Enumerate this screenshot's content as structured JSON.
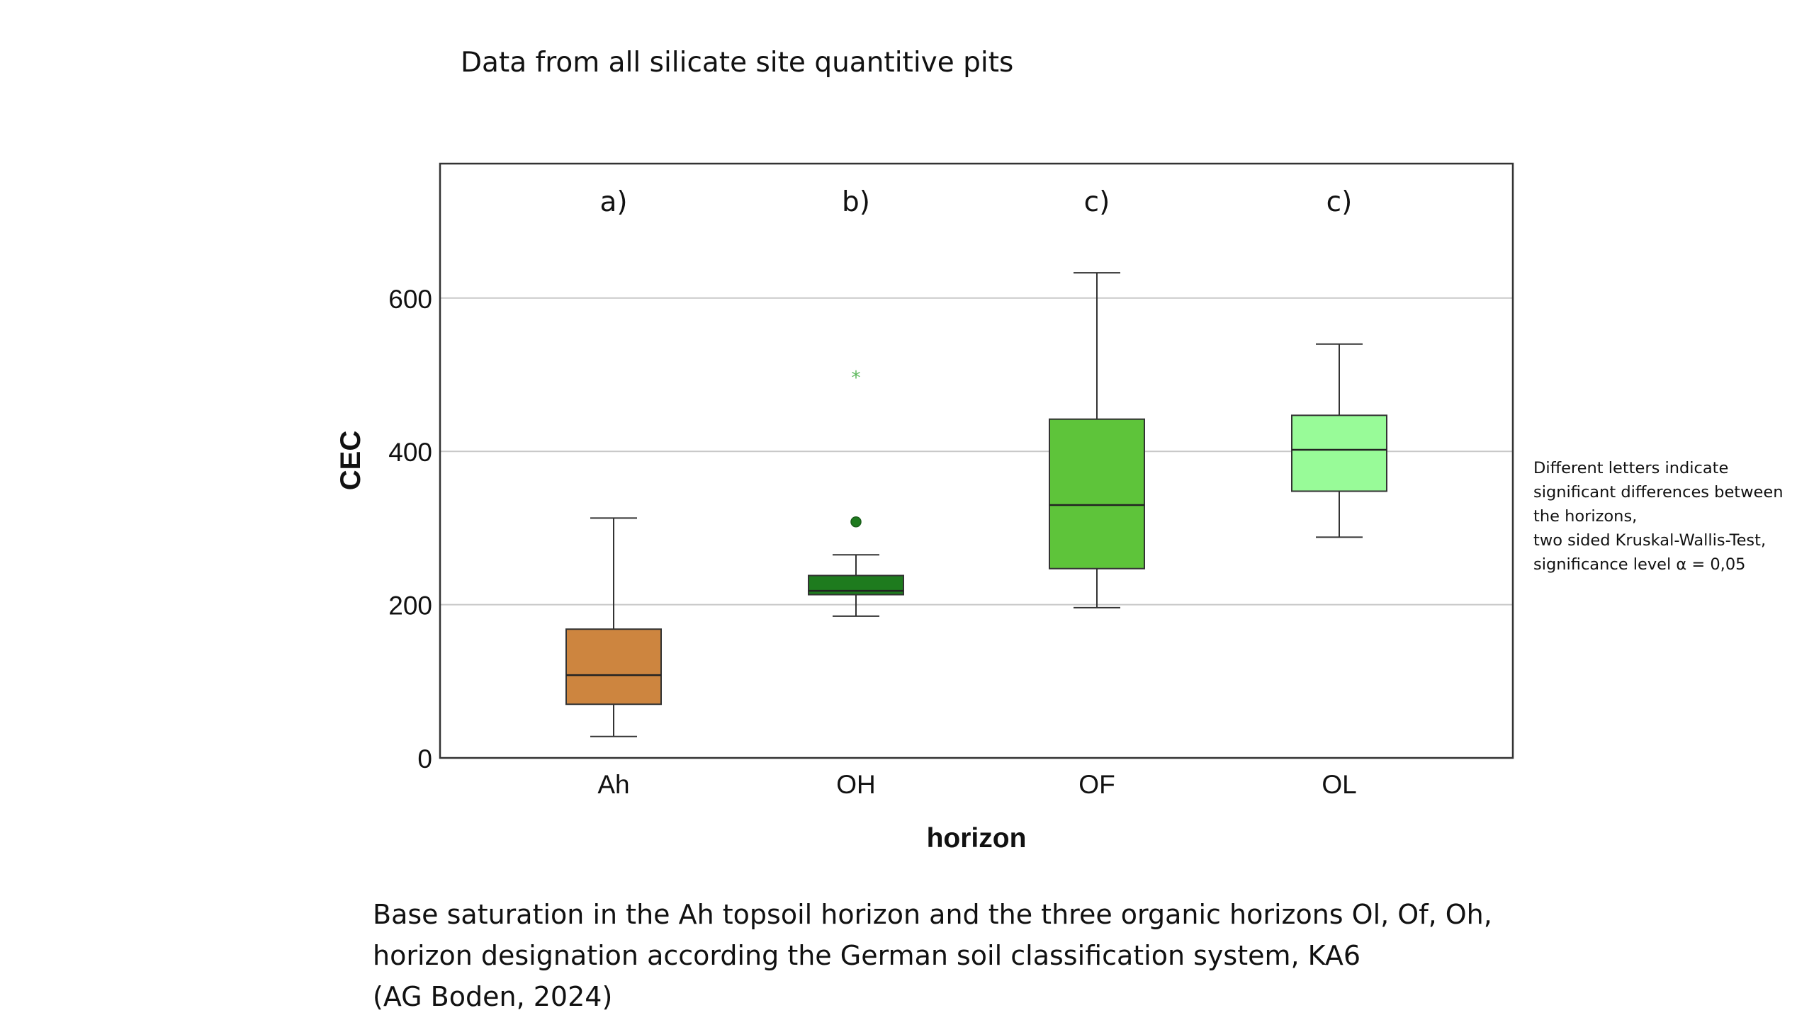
{
  "page": {
    "title": "Data from all silicate site quantitive pits",
    "side_note": [
      "Different letters indicate",
      "significant differences between",
      "the horizons,",
      "two sided Kruskal-Wallis-Test,",
      "significance level α = 0,05"
    ],
    "caption": [
      "Base saturation in the Ah topsoil horizon and the three organic horizons Ol, Of, Oh,",
      "horizon designation according the German soil classification system, KA6",
      "(AG Boden, 2024)"
    ]
  },
  "chart_data": {
    "type": "boxplot",
    "xlabel": "horizon",
    "ylabel": "CEC",
    "ylim": [
      0,
      780
    ],
    "yticks": [
      0,
      200,
      400,
      600
    ],
    "grid": "horizontal",
    "categories": [
      "Ah",
      "OH",
      "OF",
      "OL"
    ],
    "significance_letters": [
      "a)",
      "b)",
      "c)",
      "c)"
    ],
    "boxes": [
      {
        "category": "Ah",
        "color": "#CD853F",
        "whisker_low": 28,
        "q1": 70,
        "median": 108,
        "q3": 168,
        "whisker_high": 313,
        "outliers": [],
        "extremes": []
      },
      {
        "category": "OH",
        "color": "#1E7B1E",
        "whisker_low": 185,
        "q1": 213,
        "median": 218,
        "q3": 238,
        "whisker_high": 265,
        "outliers": [
          308
        ],
        "extremes": [
          497
        ]
      },
      {
        "category": "OF",
        "color": "#5EC43A",
        "whisker_low": 196,
        "q1": 247,
        "median": 330,
        "q3": 442,
        "whisker_high": 633,
        "outliers": [],
        "extremes": []
      },
      {
        "category": "OL",
        "color": "#98FB98",
        "whisker_low": 288,
        "q1": 348,
        "median": 402,
        "q3": 447,
        "whisker_high": 540,
        "outliers": [],
        "extremes": []
      }
    ]
  }
}
